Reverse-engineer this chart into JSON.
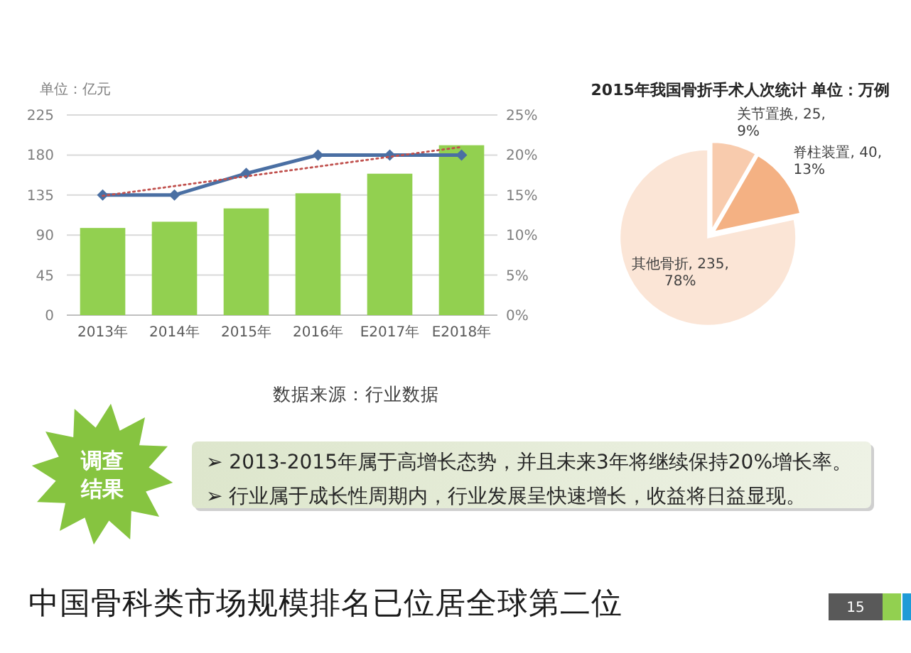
{
  "chart_data": [
    {
      "type": "bar",
      "ylabel": "单位：亿元",
      "categories": [
        "2013年",
        "2014年",
        "2015年",
        "2016年",
        "E2017年",
        "E2018年"
      ],
      "series": [
        {
          "type": "bar",
          "color": "#92d050",
          "values": [
            98,
            105,
            120,
            137,
            159,
            191
          ]
        },
        {
          "type": "line",
          "axis": "y2",
          "color": "#4a6fa3",
          "marker": "diamond",
          "values": [
            15,
            15,
            17.7,
            20,
            20,
            20
          ]
        },
        {
          "type": "line",
          "axis": "y2",
          "color": "#c0504d",
          "line_style": "dotted",
          "x": [
            "2013年",
            "E2018年"
          ],
          "values": [
            14.9,
            21.0
          ]
        }
      ],
      "ylim": [
        0,
        225
      ],
      "yticks": [
        0,
        45,
        90,
        135,
        180,
        225
      ],
      "y2lim": [
        0,
        25
      ],
      "y2ticks": [
        {
          "value": 0,
          "label": "0%"
        },
        {
          "value": 5,
          "label": "5%"
        },
        {
          "value": 10,
          "label": "10%"
        },
        {
          "value": 15,
          "label": "15%"
        },
        {
          "value": 20,
          "label": "20%"
        },
        {
          "value": 25,
          "label": "25%"
        }
      ],
      "grid": "y",
      "annotations": [
        "数据来源：行业数据"
      ]
    },
    {
      "type": "pie",
      "title": "2015年我国骨折手术人次统计 单位：万例",
      "categories": [
        "关节置换",
        "脊柱装置",
        "其他骨折"
      ],
      "values": [
        25,
        40,
        235
      ],
      "colors": [
        "#f8cbad",
        "#f4b183",
        "#fbe5d6"
      ],
      "value_labels": [
        "25,\n9%",
        "40,\n13%",
        "235,\n78%"
      ]
    },
    {
      "type": "other",
      "title": "中国骨科类市场规模排名已位居全球第二位",
      "annotations": [
        "调查结果",
        "➢ 2013-2015年属于高增长态势，并且未来3年将继续保持20%增长率。",
        "➢ 行业属于成长性周期内，行业发展呈快速增长，收益将日益显现。",
        "15"
      ]
    }
  ]
}
